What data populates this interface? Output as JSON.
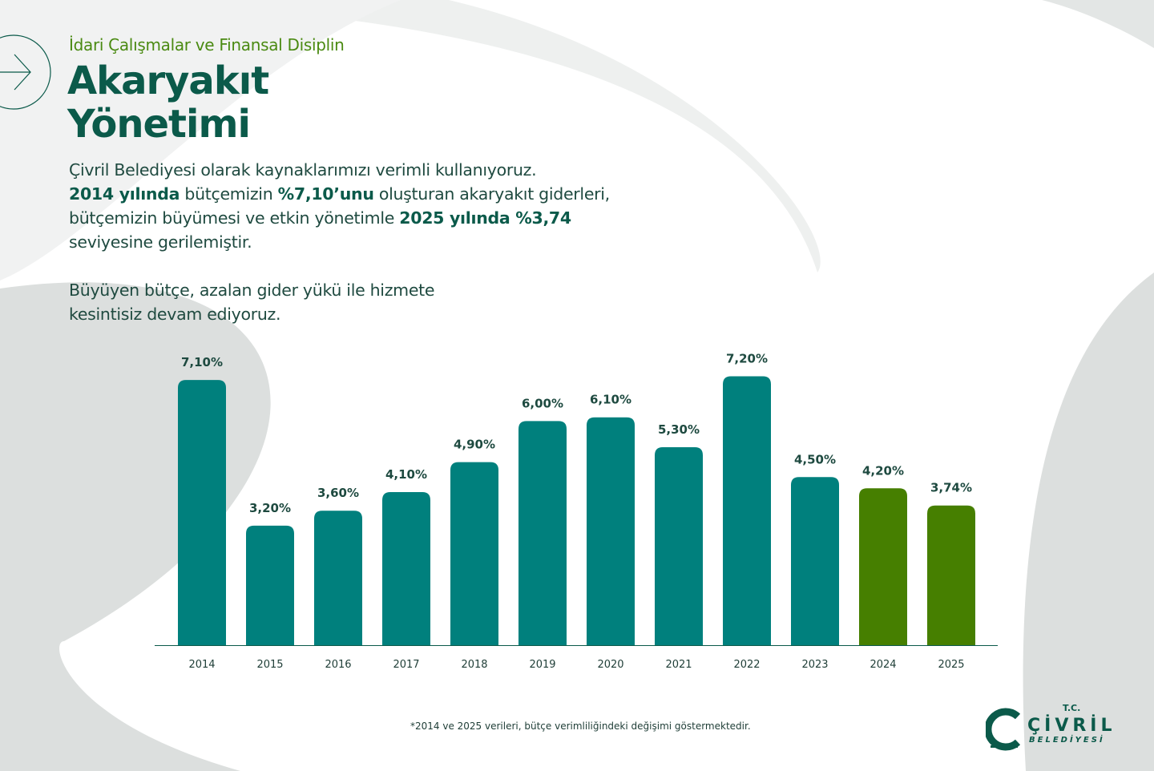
{
  "header": {
    "kicker": "İdari Çalışmalar ve Finansal Disiplin",
    "title_line1": "Akaryakıt",
    "title_line2": "Yönetimi",
    "arrow_icon": "arrow-right-icon"
  },
  "body": {
    "p1_a": "Çivril Belediyesi olarak kaynaklarımızı verimli kullanıyoruz.",
    "p1_b": "2014 yılında",
    "p1_c": " bütçemizin ",
    "p1_d": "%7,10’unu",
    "p1_e": " oluşturan akaryakıt giderleri,",
    "p1_f": "bütçemizin büyümesi ve etkin yönetimle ",
    "p1_g": "2025 yılında %3,74",
    "p1_h": "seviyesine gerilemiştir.",
    "p2_a": "Büyüyen bütçe, azalan gider yükü ile hizmete",
    "p2_b": "kesintisiz devam ediyoruz."
  },
  "footnote": "*2014 ve 2025 verileri, bütçe verimliliğindeki değişimi göstermektedir.",
  "logo": {
    "tc": "T.C.",
    "name": "ÇİVRİL",
    "sub": "BELEDİYESİ"
  },
  "colors": {
    "teal": "#00807d",
    "green": "#467f00",
    "title": "#0b5a4a",
    "kicker": "#4a8a12"
  },
  "chart_data": {
    "type": "bar",
    "title": "",
    "xlabel": "",
    "ylabel": "",
    "ylim": [
      0,
      7.2
    ],
    "grid": false,
    "categories": [
      "2014",
      "2015",
      "2016",
      "2017",
      "2018",
      "2019",
      "2020",
      "2021",
      "2022",
      "2023",
      "2024",
      "2025"
    ],
    "values": [
      7.1,
      3.2,
      3.6,
      4.1,
      4.9,
      6.0,
      6.1,
      5.3,
      7.2,
      4.5,
      4.2,
      3.74
    ],
    "labels": [
      "7,10%",
      "3,20%",
      "3,60%",
      "4,10%",
      "4,90%",
      "6,00%",
      "6,10%",
      "5,30%",
      "7,20%",
      "4,50%",
      "4,20%",
      "3,74%"
    ],
    "bar_colors": [
      "#00807d",
      "#00807d",
      "#00807d",
      "#00807d",
      "#00807d",
      "#00807d",
      "#00807d",
      "#00807d",
      "#00807d",
      "#00807d",
      "#467f00",
      "#467f00"
    ]
  }
}
